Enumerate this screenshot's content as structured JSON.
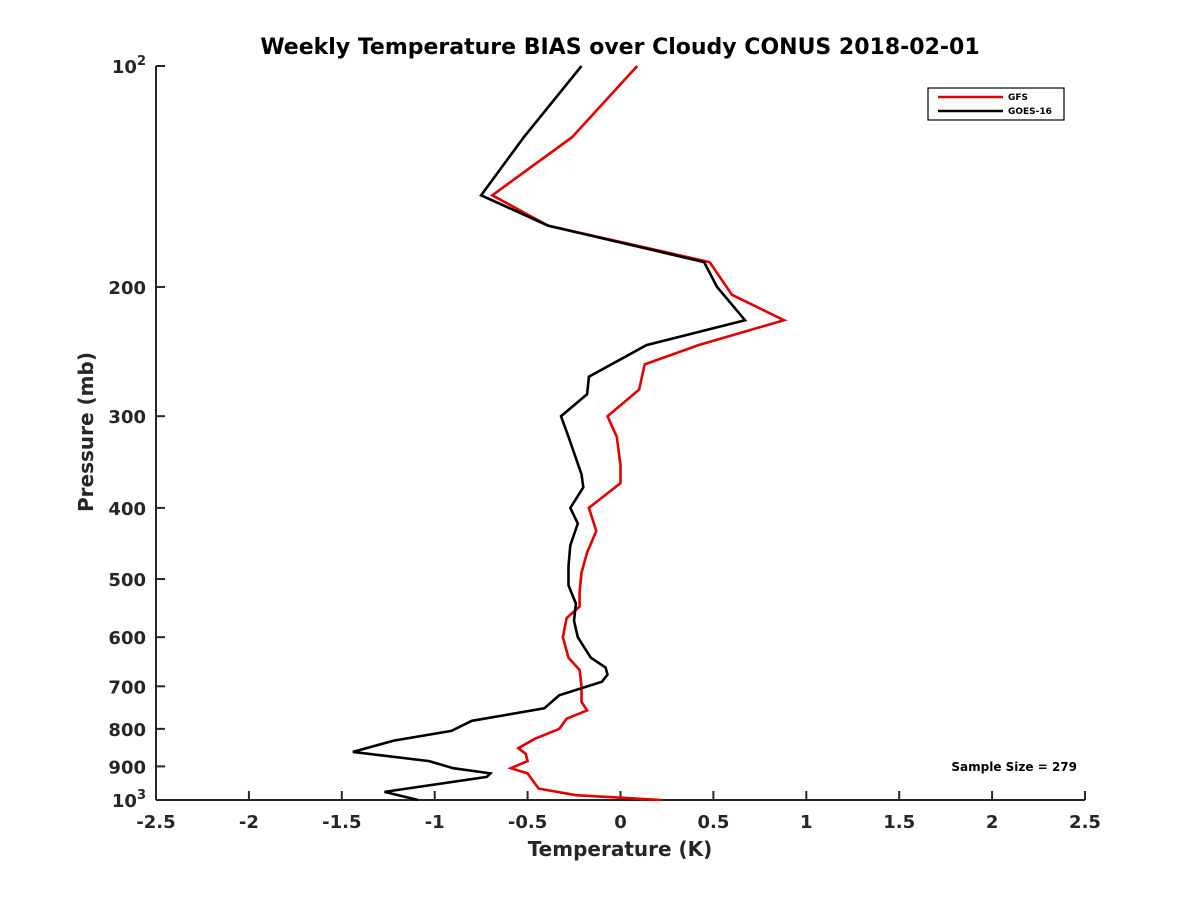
{
  "chart_data": {
    "type": "line",
    "title": "Weekly Temperature BIAS over Cloudy CONUS 2018-02-01",
    "xlabel": "Temperature (K)",
    "ylabel": "Pressure (mb)",
    "xlim": [
      -2.5,
      2.5
    ],
    "ylim": [
      100,
      1000
    ],
    "y_scale": "log",
    "y_reversed": true,
    "x_ticks": [
      "-2.5",
      "-2",
      "-1.5",
      "-1",
      "-0.5",
      "0",
      "0.5",
      "1",
      "1.5",
      "2",
      "2.5"
    ],
    "y_ticks": [
      {
        "value": 100,
        "label": "10",
        "sup": "2"
      },
      {
        "value": 200,
        "label": "200"
      },
      {
        "value": 300,
        "label": "300"
      },
      {
        "value": 400,
        "label": "400"
      },
      {
        "value": 500,
        "label": "500"
      },
      {
        "value": 600,
        "label": "600"
      },
      {
        "value": 700,
        "label": "700"
      },
      {
        "value": 800,
        "label": "800"
      },
      {
        "value": 900,
        "label": "900"
      },
      {
        "value": 1000,
        "label": "10",
        "sup": "3"
      }
    ],
    "grid": false,
    "legend_position": "top-right",
    "annotation": "Sample Size = 279",
    "series": [
      {
        "name": "GFS",
        "color": "#e00000",
        "points": [
          [
            0.09,
            100
          ],
          [
            -0.26,
            125
          ],
          [
            -0.69,
            150
          ],
          [
            -0.39,
            165
          ],
          [
            0.48,
            185
          ],
          [
            0.6,
            205
          ],
          [
            0.88,
            222
          ],
          [
            0.42,
            240
          ],
          [
            0.13,
            255
          ],
          [
            0.1,
            276
          ],
          [
            -0.07,
            300
          ],
          [
            -0.02,
            320
          ],
          [
            0.0,
            350
          ],
          [
            0.0,
            370
          ],
          [
            -0.17,
            400
          ],
          [
            -0.13,
            430
          ],
          [
            -0.18,
            460
          ],
          [
            -0.21,
            490
          ],
          [
            -0.22,
            520
          ],
          [
            -0.22,
            545
          ],
          [
            -0.29,
            565
          ],
          [
            -0.31,
            600
          ],
          [
            -0.28,
            640
          ],
          [
            -0.22,
            665
          ],
          [
            -0.21,
            700
          ],
          [
            -0.21,
            735
          ],
          [
            -0.18,
            755
          ],
          [
            -0.29,
            775
          ],
          [
            -0.33,
            800
          ],
          [
            -0.46,
            825
          ],
          [
            -0.55,
            850
          ],
          [
            -0.51,
            865
          ],
          [
            -0.5,
            885
          ],
          [
            -0.59,
            905
          ],
          [
            -0.5,
            920
          ],
          [
            -0.48,
            935
          ],
          [
            -0.46,
            950
          ],
          [
            -0.44,
            965
          ],
          [
            -0.24,
            985
          ],
          [
            0.22,
            1000
          ]
        ]
      },
      {
        "name": "GOES-16",
        "color": "#000000",
        "points": [
          [
            -0.21,
            100
          ],
          [
            -0.52,
            125
          ],
          [
            -0.75,
            150
          ],
          [
            -0.39,
            165
          ],
          [
            0.45,
            185
          ],
          [
            0.52,
            200
          ],
          [
            0.67,
            222
          ],
          [
            0.14,
            240
          ],
          [
            -0.17,
            265
          ],
          [
            -0.18,
            280
          ],
          [
            -0.32,
            300
          ],
          [
            -0.28,
            320
          ],
          [
            -0.21,
            360
          ],
          [
            -0.2,
            375
          ],
          [
            -0.27,
            400
          ],
          [
            -0.23,
            420
          ],
          [
            -0.27,
            450
          ],
          [
            -0.28,
            480
          ],
          [
            -0.28,
            510
          ],
          [
            -0.24,
            540
          ],
          [
            -0.25,
            570
          ],
          [
            -0.23,
            600
          ],
          [
            -0.16,
            640
          ],
          [
            -0.08,
            660
          ],
          [
            -0.07,
            675
          ],
          [
            -0.1,
            690
          ],
          [
            -0.33,
            720
          ],
          [
            -0.41,
            750
          ],
          [
            -0.8,
            780
          ],
          [
            -0.91,
            805
          ],
          [
            -1.22,
            830
          ],
          [
            -1.44,
            860
          ],
          [
            -1.03,
            885
          ],
          [
            -0.9,
            905
          ],
          [
            -0.7,
            920
          ],
          [
            -0.72,
            930
          ],
          [
            -1.27,
            975
          ],
          [
            -1.09,
            1000
          ]
        ]
      }
    ]
  }
}
